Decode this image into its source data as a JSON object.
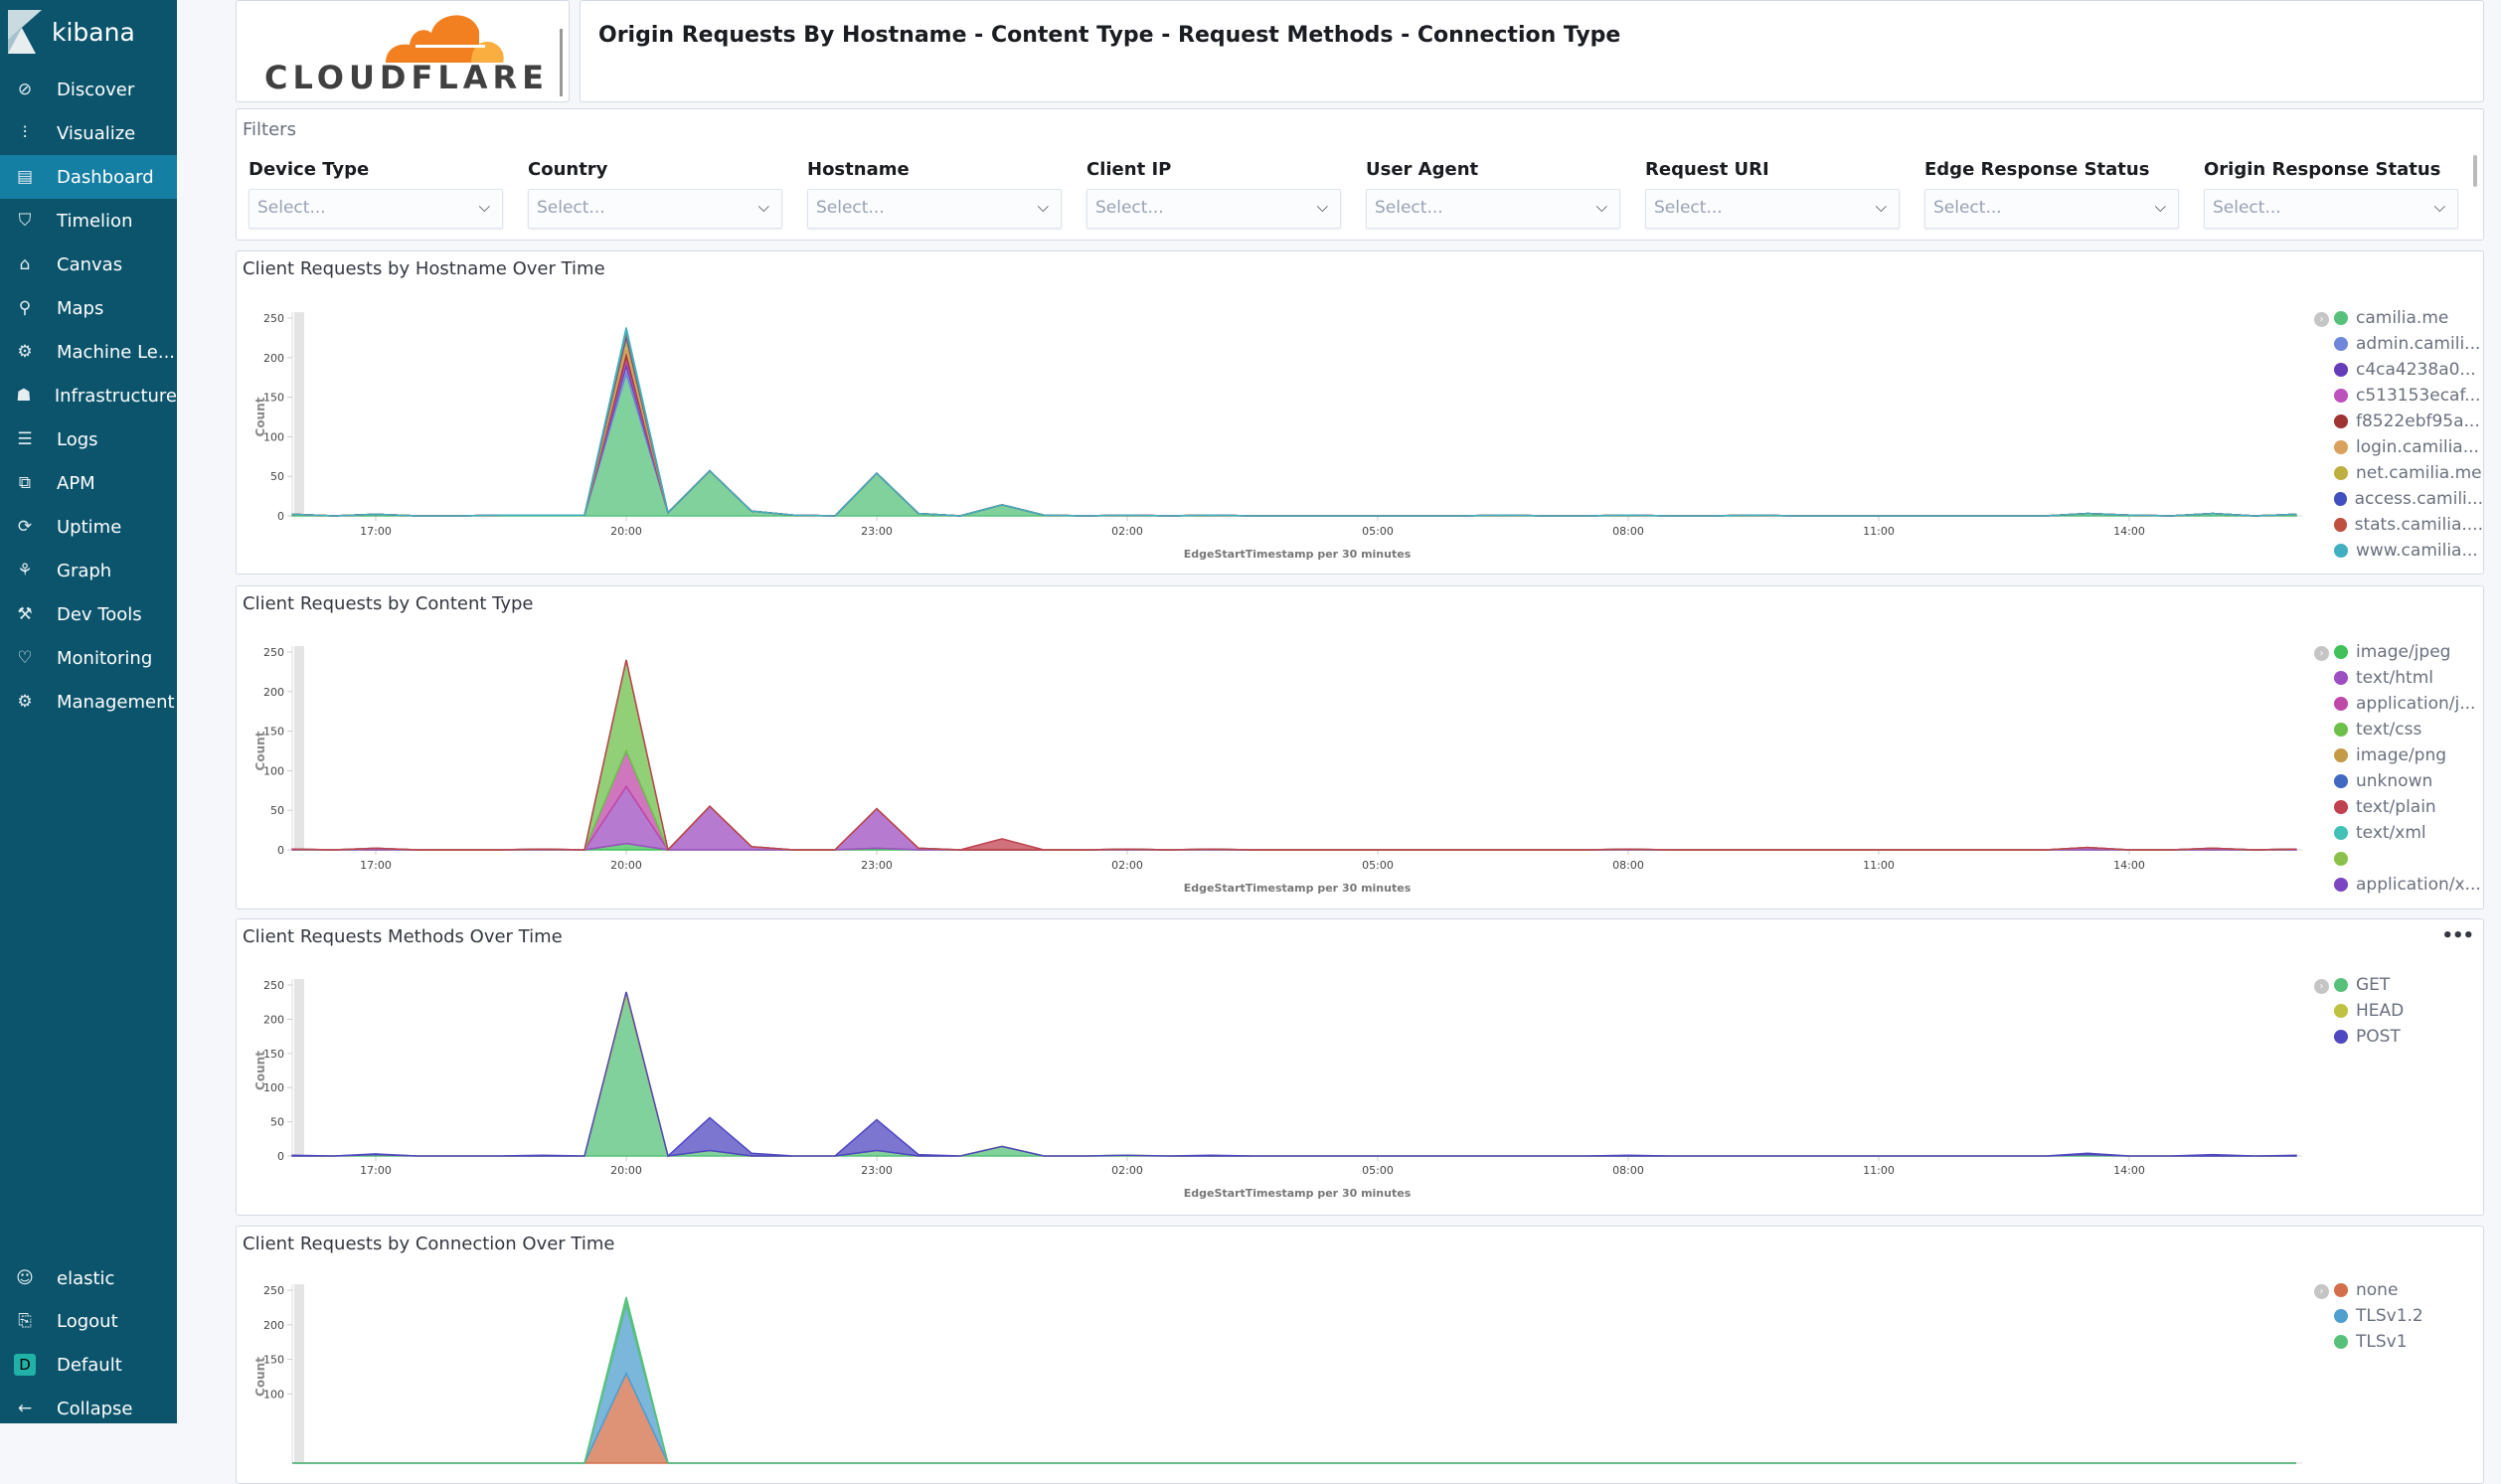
{
  "sidebar": {
    "brand": "kibana",
    "items": [
      {
        "label": "Discover",
        "icon": "compass-icon"
      },
      {
        "label": "Visualize",
        "icon": "visualize-icon"
      },
      {
        "label": "Dashboard",
        "icon": "dashboard-icon",
        "active": true
      },
      {
        "label": "Timelion",
        "icon": "timelion-icon"
      },
      {
        "label": "Canvas",
        "icon": "canvas-icon"
      },
      {
        "label": "Maps",
        "icon": "maps-icon"
      },
      {
        "label": "Machine Le...",
        "icon": "machine-learning-icon"
      },
      {
        "label": "Infrastructure",
        "icon": "infrastructure-icon"
      },
      {
        "label": "Logs",
        "icon": "logs-icon"
      },
      {
        "label": "APM",
        "icon": "apm-icon"
      },
      {
        "label": "Uptime",
        "icon": "uptime-icon"
      },
      {
        "label": "Graph",
        "icon": "graph-icon"
      },
      {
        "label": "Dev Tools",
        "icon": "dev-tools-icon"
      },
      {
        "label": "Monitoring",
        "icon": "monitoring-icon"
      },
      {
        "label": "Management",
        "icon": "gear-icon"
      }
    ],
    "bottom": {
      "user": "elastic",
      "logout": "Logout",
      "space": "Default",
      "space_initial": "D",
      "collapse": "Collapse"
    }
  },
  "header": {
    "logo_text": "CLOUDFLARE",
    "title": "Origin Requests By Hostname - Content Type - Request Methods - Connection Type"
  },
  "filters": {
    "label": "Filters",
    "placeholder": "Select...",
    "controls": [
      "Device Type",
      "Country",
      "Hostname",
      "Client IP",
      "User Agent",
      "Request URI",
      "Edge Response Status",
      "Origin Response Status"
    ]
  },
  "chart_data": [
    {
      "type": "area",
      "stacked": true,
      "title": "Client Requests by Hostname Over Time",
      "xlabel": "EdgeStartTimestamp per 30 minutes",
      "ylabel": "Count",
      "ylim": [
        0,
        250
      ],
      "yticks": [
        0,
        50,
        100,
        150,
        200,
        250
      ],
      "xticks": [
        "17:00",
        "20:00",
        "23:00",
        "02:00",
        "05:00",
        "08:00",
        "11:00",
        "14:00"
      ],
      "legend_position": "right",
      "series": [
        {
          "name": "camilia.me",
          "color": "#57c17b",
          "points": {
            "16:00": 2,
            "17:00": 2,
            "18:30": 1,
            "19:00": 1,
            "19:30": 1,
            "20:00": 180,
            "20:30": 4,
            "21:00": 57,
            "21:30": 6,
            "22:00": 1,
            "23:00": 54,
            "23:30": 3,
            "00:30": 14,
            "01:00": 1,
            "02:00": 1,
            "03:00": 1,
            "06:30": 1,
            "08:00": 1,
            "09:30": 1,
            "13:30": 3,
            "14:00": 1,
            "15:00": 3
          }
        },
        {
          "name": "admin.camili...",
          "color": "#6f87d8",
          "points": {
            "20:00": 10
          }
        },
        {
          "name": "c4ca4238a0...",
          "color": "#663db8",
          "points": {
            "20:00": 6
          }
        },
        {
          "name": "c513153ecaf...",
          "color": "#bc52bc",
          "points": {
            "20:00": 6
          }
        },
        {
          "name": "f8522ebf95a...",
          "color": "#9e3533",
          "points": {
            "20:00": 8
          }
        },
        {
          "name": "login.camilia...",
          "color": "#daa05d",
          "points": {
            "20:00": 10
          }
        },
        {
          "name": "net.camilia.me",
          "color": "#bfaf40",
          "points": {
            "20:00": 6
          }
        },
        {
          "name": "access.camili...",
          "color": "#4050bf",
          "points": {
            "20:00": 4
          }
        },
        {
          "name": "stats.camilia....",
          "color": "#bf5040",
          "points": {
            "20:00": 4
          }
        },
        {
          "name": "www.camilia...",
          "color": "#40afbf",
          "points": {
            "20:00": 4
          }
        }
      ]
    },
    {
      "type": "area",
      "stacked": true,
      "title": "Client Requests by Content Type",
      "xlabel": "EdgeStartTimestamp per 30 minutes",
      "ylabel": "Count",
      "ylim": [
        0,
        250
      ],
      "yticks": [
        0,
        50,
        100,
        150,
        200,
        250
      ],
      "xticks": [
        "17:00",
        "20:00",
        "23:00",
        "02:00",
        "05:00",
        "08:00",
        "11:00",
        "14:00"
      ],
      "legend_position": "right",
      "series": [
        {
          "name": "image/jpeg",
          "color": "#41c15a",
          "points": {
            "20:00": 8,
            "23:00": 2
          }
        },
        {
          "name": "text/html",
          "color": "#9d4fc1",
          "points": {
            "16:00": 1,
            "17:00": 2,
            "19:00": 1,
            "20:00": 72,
            "21:00": 55,
            "21:30": 4,
            "23:00": 50,
            "23:30": 2,
            "02:00": 1,
            "03:00": 1,
            "08:00": 1,
            "13:30": 3,
            "15:00": 2
          }
        },
        {
          "name": "application/j...",
          "color": "#c048a8",
          "points": {
            "20:00": 45
          }
        },
        {
          "name": "text/css",
          "color": "#6cc04a",
          "points": {
            "20:00": 115
          }
        },
        {
          "name": "image/png",
          "color": "#c49a47",
          "points": {}
        },
        {
          "name": "unknown",
          "color": "#4169c1",
          "points": {}
        },
        {
          "name": "text/plain",
          "color": "#c0414f",
          "points": {
            "00:30": 14
          }
        },
        {
          "name": "text/xml",
          "color": "#42c1b6",
          "points": {}
        },
        {
          "name": "",
          "color": "#8bc14a",
          "points": {}
        },
        {
          "name": "application/x...",
          "color": "#7c45c1",
          "points": {}
        }
      ]
    },
    {
      "type": "area",
      "stacked": true,
      "title": "Client Requests Methods Over Time",
      "xlabel": "EdgeStartTimestamp per 30 minutes",
      "ylabel": "Count",
      "ylim": [
        0,
        250
      ],
      "yticks": [
        0,
        50,
        100,
        150,
        200,
        250
      ],
      "xticks": [
        "17:00",
        "20:00",
        "23:00",
        "02:00",
        "05:00",
        "08:00",
        "11:00",
        "14:00"
      ],
      "legend_position": "right",
      "series": [
        {
          "name": "GET",
          "color": "#57c17b",
          "points": {
            "17:00": 2,
            "20:00": 235,
            "21:00": 8,
            "23:00": 8,
            "00:30": 14,
            "02:00": 1,
            "13:30": 2
          }
        },
        {
          "name": "HEAD",
          "color": "#bfc140",
          "points": {
            "20:00": 5
          }
        },
        {
          "name": "POST",
          "color": "#5048c1",
          "points": {
            "16:00": 1,
            "17:00": 1,
            "19:00": 1,
            "21:00": 48,
            "21:30": 4,
            "23:00": 45,
            "23:30": 2,
            "03:00": 1,
            "08:00": 1,
            "13:30": 2,
            "15:00": 2
          }
        }
      ]
    },
    {
      "type": "area",
      "stacked": true,
      "title": "Client Requests by Connection Over Time",
      "xlabel": "",
      "ylabel": "Count",
      "ylim": [
        0,
        250
      ],
      "yticks": [
        100,
        150,
        200,
        250
      ],
      "xticks": [],
      "legend_position": "right",
      "series": [
        {
          "name": "none",
          "color": "#d36f4a",
          "points": {
            "20:00": 130
          }
        },
        {
          "name": "TLSv1.2",
          "color": "#4f9fcf",
          "points": {
            "20:00": 100
          }
        },
        {
          "name": "TLSv1",
          "color": "#57c17b",
          "points": {
            "20:00": 10
          }
        }
      ]
    }
  ]
}
